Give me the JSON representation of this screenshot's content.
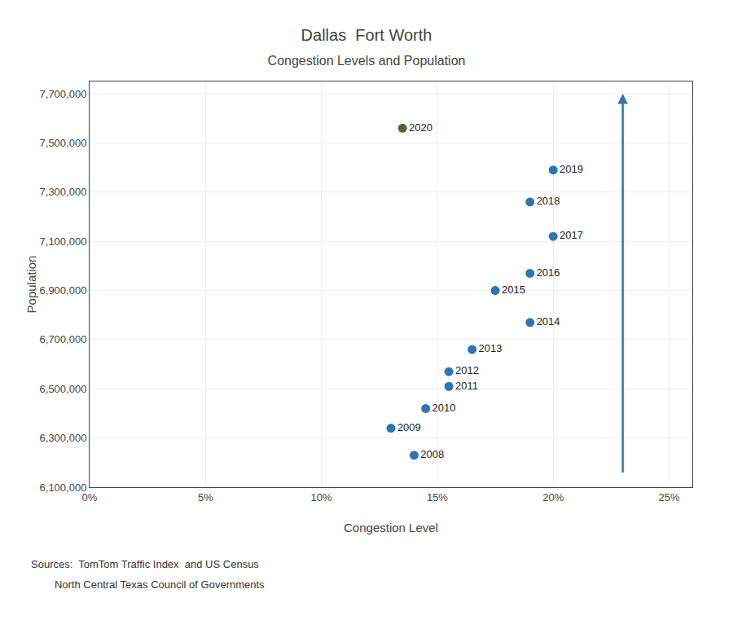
{
  "chart_data": {
    "type": "scatter",
    "title": "Dallas  Fort Worth",
    "subtitle": "Congestion Levels and Population",
    "x_label": "Congestion Level",
    "y_label": "Population",
    "annotations": [
      "Sources:  TomTom Traffic Index  and US Census",
      "        North Central Texas Council of Governments"
    ],
    "x": [
      0.14,
      0.13,
      0.145,
      0.155,
      0.155,
      0.165,
      0.19,
      0.175,
      0.19,
      0.2,
      0.19,
      0.2,
      0.135
    ],
    "values": [
      6230000,
      6340000,
      6420000,
      6510000,
      6570000,
      6660000,
      6770000,
      6900000,
      6970000,
      7120000,
      7260000,
      7390000,
      7560000
    ],
    "labels": [
      "2008",
      "2009",
      "2010",
      "2011",
      "2012",
      "2013",
      "2014",
      "2015",
      "2016",
      "2017",
      "2018",
      "2019",
      "2020"
    ],
    "colors": [
      "#2E75B6",
      "#2E75B6",
      "#2E75B6",
      "#2E75B6",
      "#2E75B6",
      "#2E75B6",
      "#2E75B6",
      "#2E75B6",
      "#2E75B6",
      "#2E75B6",
      "#2E75B6",
      "#2E75B6",
      "#4E6B2E"
    ],
    "arrow": {
      "x": 0.23,
      "from": 6155000,
      "to": 7700000,
      "color": "#2E75B6"
    },
    "xlim": [
      0.0,
      0.26
    ],
    "ylim": [
      6100000,
      7750000
    ],
    "xticks": [
      {
        "value": 0.0,
        "label": "0%"
      },
      {
        "value": 0.05,
        "label": "5%"
      },
      {
        "value": 0.1,
        "label": "10%"
      },
      {
        "value": 0.15,
        "label": "15%"
      },
      {
        "value": 0.2,
        "label": "20%"
      },
      {
        "value": 0.25,
        "label": "25%"
      }
    ],
    "yticks": [
      {
        "value": 6100000,
        "label": "6,100,000"
      },
      {
        "value": 6300000,
        "label": "6,300,000"
      },
      {
        "value": 6500000,
        "label": "6,500,000"
      },
      {
        "value": 6700000,
        "label": "6,700,000"
      },
      {
        "value": 6900000,
        "label": "6,900,000"
      },
      {
        "value": 7100000,
        "label": "7,100,000"
      },
      {
        "value": 7300000,
        "label": "7,300,000"
      },
      {
        "value": 7500000,
        "label": "7,500,000"
      },
      {
        "value": 7700000,
        "label": "7,700,000"
      }
    ],
    "grid": true
  }
}
